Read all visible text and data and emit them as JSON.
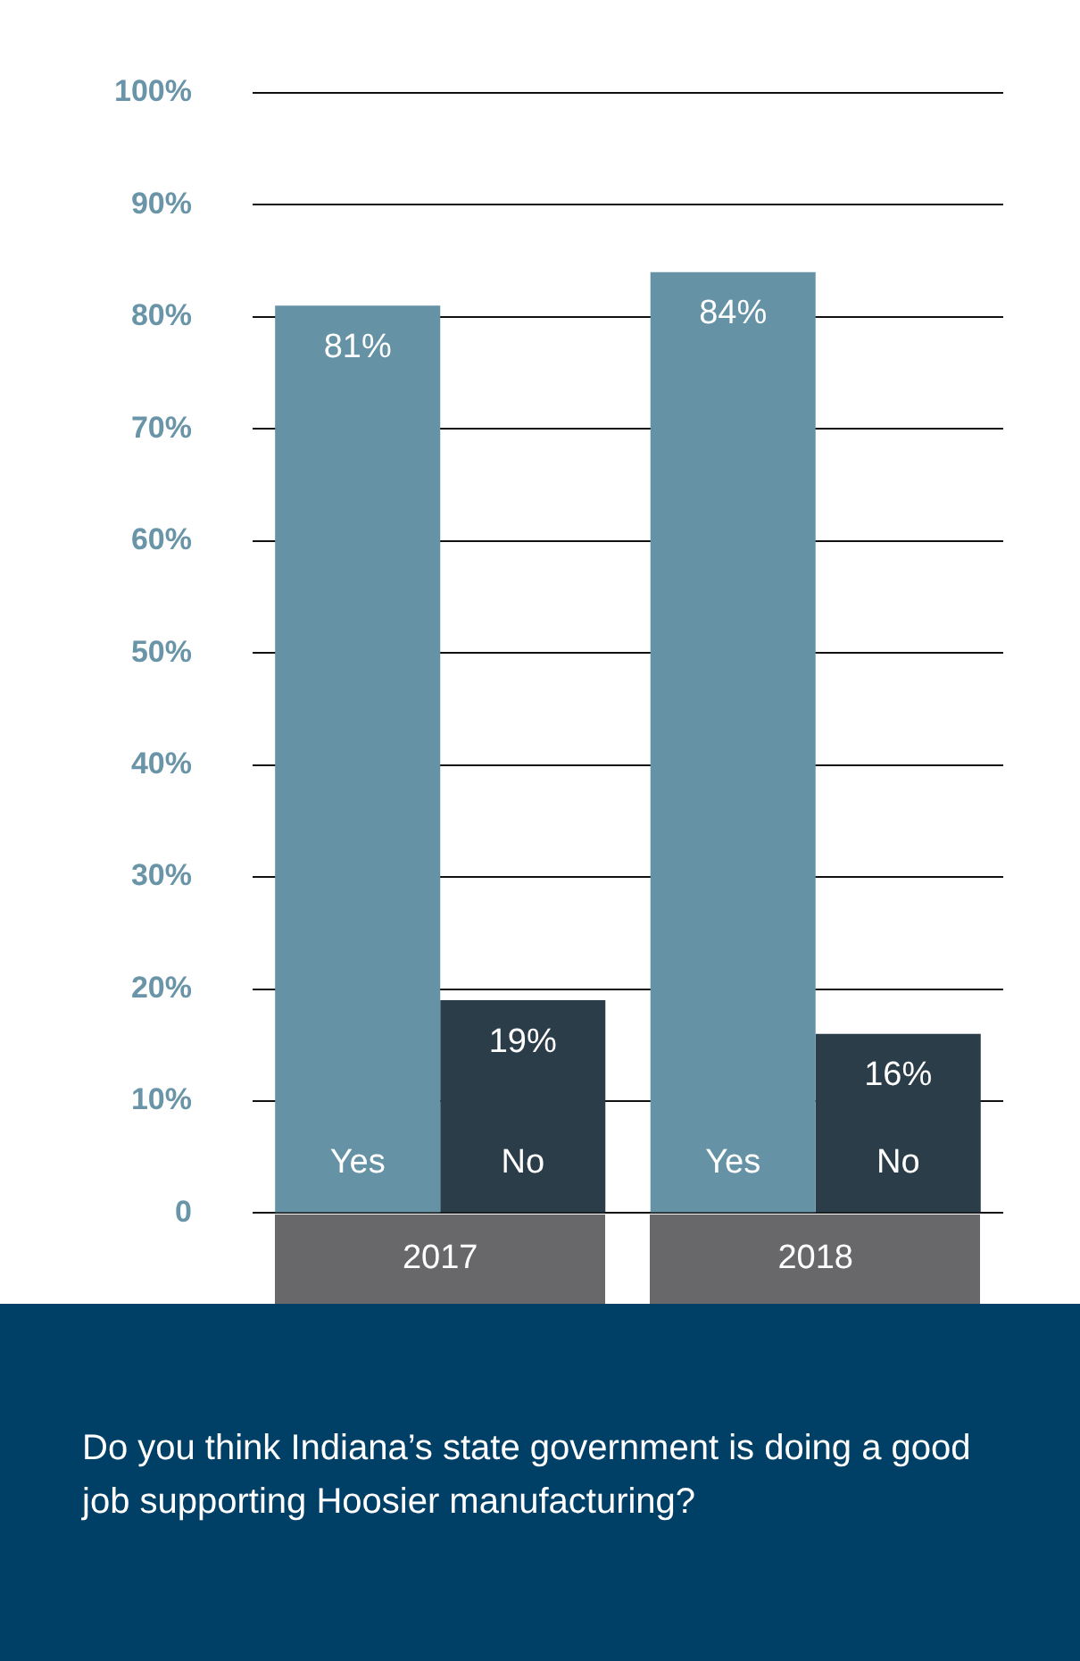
{
  "chart_data": {
    "type": "bar",
    "title": "Do you think Indiana’s state government is doing a good job supporting Hoosier manufacturing?",
    "categories": [
      "2017",
      "2018"
    ],
    "series": [
      {
        "name": "Yes",
        "color": "#6592a5",
        "values": [
          81,
          84
        ],
        "value_labels": [
          "81%",
          "84%"
        ]
      },
      {
        "name": "No",
        "color": "#2b3d49",
        "values": [
          19,
          16
        ],
        "value_labels": [
          "19%",
          "16%"
        ]
      }
    ],
    "ylim": [
      0,
      100
    ],
    "yticks": [
      {
        "value": 0,
        "label": "0"
      },
      {
        "value": 10,
        "label": "10%"
      },
      {
        "value": 20,
        "label": "20%"
      },
      {
        "value": 30,
        "label": "30%"
      },
      {
        "value": 40,
        "label": "40%"
      },
      {
        "value": 50,
        "label": "50%"
      },
      {
        "value": 60,
        "label": "60%"
      },
      {
        "value": 70,
        "label": "70%"
      },
      {
        "value": 80,
        "label": "80%"
      },
      {
        "value": 90,
        "label": "90%"
      },
      {
        "value": 100,
        "label": "100%"
      }
    ],
    "grid": "y"
  }
}
